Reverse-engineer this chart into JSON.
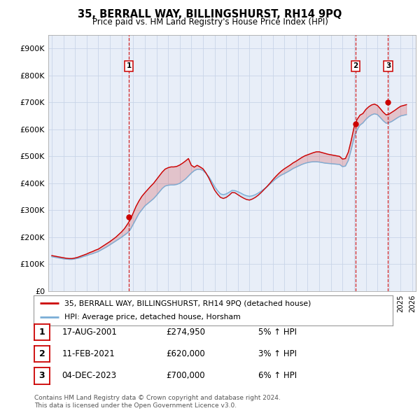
{
  "title": "35, BERRALL WAY, BILLINGSHURST, RH14 9PQ",
  "subtitle": "Price paid vs. HM Land Registry's House Price Index (HPI)",
  "ylim": [
    0,
    950000
  ],
  "yticks": [
    0,
    100000,
    200000,
    300000,
    400000,
    500000,
    600000,
    700000,
    800000,
    900000
  ],
  "ytick_labels": [
    "£0",
    "£100K",
    "£200K",
    "£300K",
    "£400K",
    "£500K",
    "£600K",
    "£700K",
    "£800K",
    "£900K"
  ],
  "xlim_start": 1994.7,
  "xlim_end": 2026.3,
  "sale_dates": [
    2001.63,
    2021.12,
    2023.92
  ],
  "sale_prices": [
    274950,
    620000,
    700000
  ],
  "sale_labels": [
    "1",
    "2",
    "3"
  ],
  "line_color_red": "#cc0000",
  "line_color_blue": "#7aaed6",
  "vline_color": "#cc0000",
  "hpi_line_years": [
    1995.0,
    1995.25,
    1995.5,
    1995.75,
    1996.0,
    1996.25,
    1996.5,
    1996.75,
    1997.0,
    1997.25,
    1997.5,
    1997.75,
    1998.0,
    1998.25,
    1998.5,
    1998.75,
    1999.0,
    1999.25,
    1999.5,
    1999.75,
    2000.0,
    2000.25,
    2000.5,
    2000.75,
    2001.0,
    2001.25,
    2001.5,
    2001.75,
    2002.0,
    2002.25,
    2002.5,
    2002.75,
    2003.0,
    2003.25,
    2003.5,
    2003.75,
    2004.0,
    2004.25,
    2004.5,
    2004.75,
    2005.0,
    2005.25,
    2005.5,
    2005.75,
    2006.0,
    2006.25,
    2006.5,
    2006.75,
    2007.0,
    2007.25,
    2007.5,
    2007.75,
    2008.0,
    2008.25,
    2008.5,
    2008.75,
    2009.0,
    2009.25,
    2009.5,
    2009.75,
    2010.0,
    2010.25,
    2010.5,
    2010.75,
    2011.0,
    2011.25,
    2011.5,
    2011.75,
    2012.0,
    2012.25,
    2012.5,
    2012.75,
    2013.0,
    2013.25,
    2013.5,
    2013.75,
    2014.0,
    2014.25,
    2014.5,
    2014.75,
    2015.0,
    2015.25,
    2015.5,
    2015.75,
    2016.0,
    2016.25,
    2016.5,
    2016.75,
    2017.0,
    2017.25,
    2017.5,
    2017.75,
    2018.0,
    2018.25,
    2018.5,
    2018.75,
    2019.0,
    2019.25,
    2019.5,
    2019.75,
    2020.0,
    2020.25,
    2020.5,
    2020.75,
    2021.0,
    2021.25,
    2021.5,
    2021.75,
    2022.0,
    2022.25,
    2022.5,
    2022.75,
    2023.0,
    2023.25,
    2023.5,
    2023.75,
    2024.0,
    2024.25,
    2024.5,
    2024.75,
    2025.0,
    2025.5
  ],
  "hpi_line_values": [
    128000,
    126000,
    124000,
    122000,
    120000,
    119000,
    118000,
    118000,
    120000,
    122000,
    125000,
    129000,
    132000,
    136000,
    139000,
    143000,
    147000,
    153000,
    159000,
    165000,
    172000,
    179000,
    186000,
    193000,
    200000,
    208000,
    216000,
    228000,
    248000,
    268000,
    288000,
    302000,
    316000,
    325000,
    334000,
    343000,
    355000,
    368000,
    381000,
    390000,
    393000,
    394000,
    394000,
    396000,
    400000,
    408000,
    416000,
    427000,
    438000,
    447000,
    452000,
    452000,
    448000,
    437000,
    425000,
    407000,
    388000,
    373000,
    361000,
    358000,
    361000,
    367000,
    374000,
    373000,
    369000,
    364000,
    358000,
    354000,
    352000,
    354000,
    358000,
    364000,
    371000,
    379000,
    387000,
    397000,
    407000,
    416000,
    424000,
    431000,
    436000,
    442000,
    448000,
    455000,
    460000,
    465000,
    470000,
    474000,
    477000,
    479000,
    480000,
    480000,
    479000,
    477000,
    475000,
    474000,
    473000,
    472000,
    471000,
    470000,
    462000,
    464000,
    485000,
    525000,
    570000,
    598000,
    616000,
    624000,
    637000,
    647000,
    654000,
    658000,
    655000,
    644000,
    632000,
    623000,
    625000,
    630000,
    637000,
    644000,
    650000,
    655000
  ],
  "price_line_years": [
    1995.0,
    1995.25,
    1995.5,
    1995.75,
    1996.0,
    1996.25,
    1996.5,
    1996.75,
    1997.0,
    1997.25,
    1997.5,
    1997.75,
    1998.0,
    1998.25,
    1998.5,
    1998.75,
    1999.0,
    1999.25,
    1999.5,
    1999.75,
    2000.0,
    2000.25,
    2000.5,
    2000.75,
    2001.0,
    2001.25,
    2001.5,
    2001.75,
    2002.0,
    2002.25,
    2002.5,
    2002.75,
    2003.0,
    2003.25,
    2003.5,
    2003.75,
    2004.0,
    2004.25,
    2004.5,
    2004.75,
    2005.0,
    2005.25,
    2005.5,
    2005.75,
    2006.0,
    2006.25,
    2006.5,
    2006.75,
    2007.0,
    2007.25,
    2007.5,
    2007.75,
    2008.0,
    2008.25,
    2008.5,
    2008.75,
    2009.0,
    2009.25,
    2009.5,
    2009.75,
    2010.0,
    2010.25,
    2010.5,
    2010.75,
    2011.0,
    2011.25,
    2011.5,
    2011.75,
    2012.0,
    2012.25,
    2012.5,
    2012.75,
    2013.0,
    2013.25,
    2013.5,
    2013.75,
    2014.0,
    2014.25,
    2014.5,
    2014.75,
    2015.0,
    2015.25,
    2015.5,
    2015.75,
    2016.0,
    2016.25,
    2016.5,
    2016.75,
    2017.0,
    2017.25,
    2017.5,
    2017.75,
    2018.0,
    2018.25,
    2018.5,
    2018.75,
    2019.0,
    2019.25,
    2019.5,
    2019.75,
    2020.0,
    2020.25,
    2020.5,
    2020.75,
    2021.0,
    2021.25,
    2021.5,
    2021.75,
    2022.0,
    2022.25,
    2022.5,
    2022.75,
    2023.0,
    2023.25,
    2023.5,
    2023.75,
    2024.0,
    2024.25,
    2024.5,
    2024.75,
    2025.0,
    2025.5
  ],
  "price_line_values": [
    132000,
    130000,
    128000,
    126000,
    124000,
    122000,
    121000,
    121000,
    123000,
    126000,
    130000,
    134000,
    138000,
    143000,
    147000,
    152000,
    156000,
    163000,
    170000,
    177000,
    184000,
    192000,
    200000,
    210000,
    220000,
    232000,
    248000,
    265000,
    290000,
    315000,
    335000,
    352000,
    365000,
    377000,
    389000,
    400000,
    414000,
    428000,
    442000,
    453000,
    458000,
    461000,
    461000,
    463000,
    468000,
    475000,
    483000,
    492000,
    467000,
    460000,
    467000,
    461000,
    454000,
    439000,
    420000,
    397000,
    375000,
    360000,
    348000,
    344000,
    348000,
    356000,
    366000,
    365000,
    358000,
    351000,
    345000,
    340000,
    338000,
    342000,
    348000,
    356000,
    366000,
    377000,
    388000,
    400000,
    413000,
    425000,
    436000,
    446000,
    454000,
    461000,
    468000,
    476000,
    482000,
    489000,
    496000,
    502000,
    506000,
    510000,
    514000,
    517000,
    517000,
    514000,
    511000,
    508000,
    506000,
    504000,
    502000,
    500000,
    490000,
    492000,
    516000,
    560000,
    610000,
    637000,
    653000,
    659000,
    674000,
    684000,
    691000,
    694000,
    689000,
    677000,
    664000,
    654000,
    657000,
    664000,
    671000,
    679000,
    686000,
    692000
  ],
  "table_rows": [
    {
      "num": "1",
      "date": "17-AUG-2001",
      "price": "£274,950",
      "hpi": "5% ↑ HPI"
    },
    {
      "num": "2",
      "date": "11-FEB-2021",
      "price": "£620,000",
      "hpi": "3% ↑ HPI"
    },
    {
      "num": "3",
      "date": "04-DEC-2023",
      "price": "£700,000",
      "hpi": "6% ↑ HPI"
    }
  ],
  "legend_line1": "35, BERRALL WAY, BILLINGSHURST, RH14 9PQ (detached house)",
  "legend_line2": "HPI: Average price, detached house, Horsham",
  "footnote1": "Contains HM Land Registry data © Crown copyright and database right 2024.",
  "footnote2": "This data is licensed under the Open Government Licence v3.0.",
  "background_color": "#ffffff",
  "grid_color": "#c8d4e8",
  "plot_bg": "#e8eef8"
}
